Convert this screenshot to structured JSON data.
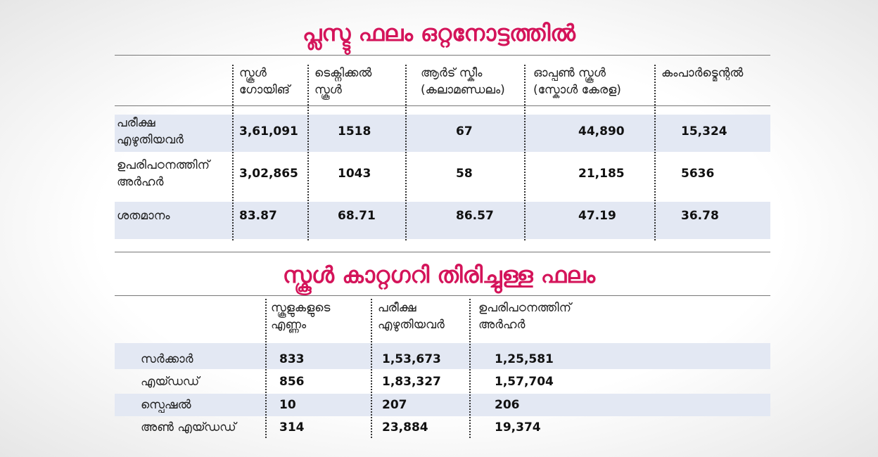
{
  "table1": {
    "title": "പ്ലസ്ടു ഫലം ഒറ്റനോട്ടത്തിൽ",
    "columns": [
      [
        "സ്കൂൾ",
        "ഗോയിങ്"
      ],
      [
        "ടെക്നിക്കൽ",
        "സ്കൂൾ"
      ],
      [
        "ആർട് സ്കീം",
        "(കലാമണ്ഡലം)"
      ],
      [
        "ഓപ്പൺ സ്കൂൾ",
        "(സ്കോൾ കേരള)"
      ],
      [
        "കംപാർട്മെന്റൽ"
      ]
    ],
    "rows": [
      {
        "label": [
          "പരീക്ഷ",
          "എഴുതിയവർ"
        ],
        "values": [
          "3,61,091",
          "1518",
          "67",
          "44,890",
          "15,324"
        ]
      },
      {
        "label": [
          "ഉപരിപഠനത്തിന്",
          "അർഹർ"
        ],
        "values": [
          "3,02,865",
          "1043",
          "58",
          "21,185",
          "5636"
        ]
      },
      {
        "label": [
          "ശതമാനം"
        ],
        "values": [
          "83.87",
          "68.71",
          "86.57",
          "47.19",
          "36.78"
        ]
      }
    ]
  },
  "table2": {
    "title": "സ്കൂൾ കാറ്റഗറി തിരിച്ചുള്ള ഫലം",
    "columns": [
      [
        "സ്കൂളുകളുടെ",
        "എണ്ണം"
      ],
      [
        "പരീക്ഷ",
        "എഴുതിയവർ"
      ],
      [
        "ഉപരിപഠനത്തിന്",
        "അർഹർ"
      ]
    ],
    "rows": [
      {
        "label": [
          "സർക്കാർ"
        ],
        "values": [
          "833",
          "1,53,673",
          "1,25,581"
        ]
      },
      {
        "label": [
          "എയ്ഡഡ്"
        ],
        "values": [
          "856",
          "1,83,327",
          "1,57,704"
        ]
      },
      {
        "label": [
          "സ്പെഷൽ"
        ],
        "values": [
          "10",
          "207",
          "206"
        ]
      },
      {
        "label": [
          "അൺ എയ്ഡഡ്"
        ],
        "values": [
          "314",
          "23,884",
          "19,374"
        ]
      }
    ]
  }
}
